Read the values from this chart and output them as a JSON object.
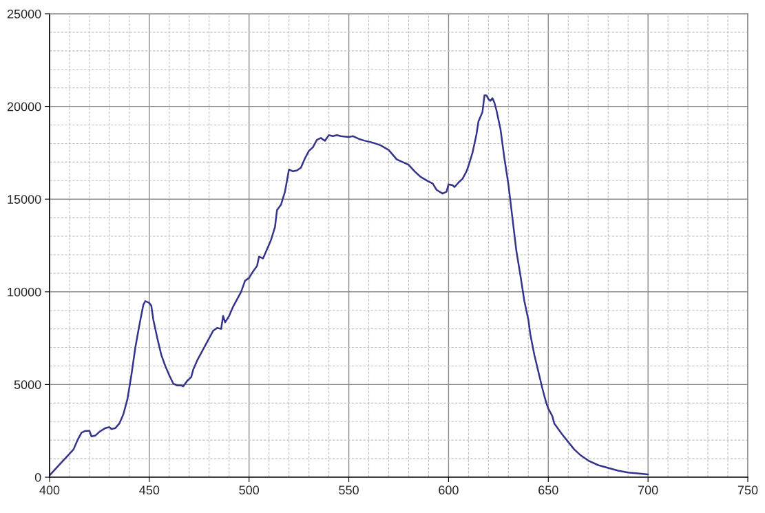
{
  "chart_data": {
    "type": "line",
    "xlim": [
      400,
      750
    ],
    "xticks": [
      400,
      450,
      500,
      550,
      600,
      650,
      700,
      750
    ],
    "ylim": [
      0,
      25000
    ],
    "yticks": [
      0,
      5000,
      10000,
      15000,
      20000,
      25000
    ],
    "grid": true,
    "marker": "none",
    "line_style": "solid",
    "series": [
      {
        "color": "#34348a",
        "x": [
          400,
          403,
          406,
          409,
          412,
          414,
          416,
          418,
          420,
          421,
          423,
          425,
          428,
          430,
          431,
          433,
          435,
          437,
          439,
          441,
          443,
          445,
          447,
          448,
          450,
          451,
          452,
          454,
          456,
          458,
          460,
          462,
          464,
          466,
          467,
          469,
          471,
          472,
          474,
          476,
          478,
          480,
          482,
          484,
          486,
          487,
          488,
          490,
          492,
          494,
          496,
          498,
          500,
          502,
          504,
          505,
          507,
          509,
          511,
          513,
          514,
          516,
          518,
          519,
          520,
          522,
          524,
          526,
          528,
          530,
          532,
          534,
          536,
          538,
          540,
          542,
          544,
          546,
          550,
          552,
          555,
          558,
          562,
          566,
          570,
          572,
          574,
          576,
          578,
          580,
          583,
          586,
          590,
          592,
          594,
          597,
          599,
          600,
          602,
          603,
          605,
          607,
          609,
          610,
          612,
          614,
          615,
          617,
          618,
          619,
          620,
          621,
          622,
          623,
          624,
          626,
          628,
          630,
          632,
          634,
          636,
          638,
          640,
          641,
          643,
          645,
          647,
          649,
          650,
          652,
          653,
          655,
          657,
          660,
          663,
          666,
          670,
          675,
          680,
          685,
          690,
          695,
          700
        ],
        "values": [
          100,
          450,
          800,
          1150,
          1500,
          2000,
          2400,
          2500,
          2500,
          2200,
          2250,
          2450,
          2650,
          2700,
          2600,
          2650,
          2900,
          3400,
          4200,
          5500,
          7000,
          8200,
          9300,
          9500,
          9400,
          9250,
          8500,
          7500,
          6600,
          6000,
          5500,
          5050,
          4950,
          4950,
          4900,
          5200,
          5400,
          5800,
          6300,
          6700,
          7100,
          7500,
          7900,
          8050,
          8000,
          8700,
          8350,
          8700,
          9200,
          9600,
          10000,
          10600,
          10750,
          11100,
          11400,
          11900,
          11800,
          12300,
          12800,
          13500,
          14400,
          14700,
          15400,
          16000,
          16600,
          16500,
          16550,
          16700,
          17200,
          17600,
          17800,
          18200,
          18300,
          18150,
          18450,
          18400,
          18450,
          18400,
          18350,
          18400,
          18250,
          18150,
          18050,
          17900,
          17650,
          17400,
          17150,
          17050,
          16950,
          16850,
          16500,
          16200,
          15950,
          15850,
          15500,
          15300,
          15400,
          15800,
          15750,
          15650,
          15900,
          16100,
          16500,
          16800,
          17500,
          18500,
          19200,
          19700,
          20600,
          20600,
          20400,
          20300,
          20450,
          20200,
          19800,
          18800,
          17200,
          15800,
          14000,
          12200,
          10900,
          9500,
          8500,
          7700,
          6600,
          5700,
          4800,
          4000,
          3700,
          3300,
          2900,
          2600,
          2300,
          1900,
          1500,
          1200,
          900,
          650,
          500,
          350,
          250,
          200,
          150
        ]
      }
    ]
  }
}
